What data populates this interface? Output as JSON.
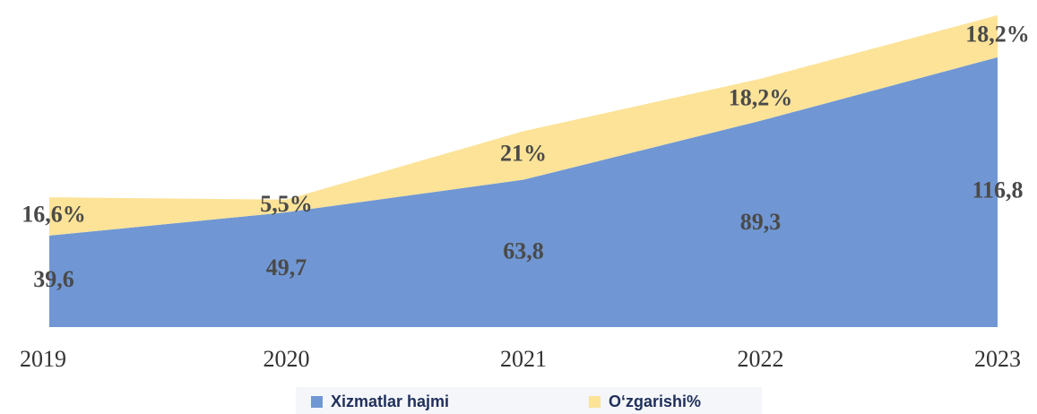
{
  "chart_data": {
    "type": "stacked_area",
    "categories": [
      "2019",
      "2020",
      "2021",
      "2022",
      "2023"
    ],
    "series": [
      {
        "name": "Xizmatlar hajmi",
        "color": "#7097d4",
        "values": [
          39.6,
          49.7,
          63.8,
          89.3,
          116.8
        ],
        "value_labels": [
          "39,6",
          "49,7",
          "63,8",
          "89,3",
          "116,8"
        ]
      },
      {
        "name": "O‘zgarishi%",
        "color": "#fce398",
        "values": [
          16.6,
          5.5,
          21,
          18.2,
          18.2
        ],
        "value_labels": [
          "16,6%",
          "5,5%",
          "21%",
          "18,2%",
          "18,2%"
        ]
      }
    ],
    "legend": "bottom"
  }
}
